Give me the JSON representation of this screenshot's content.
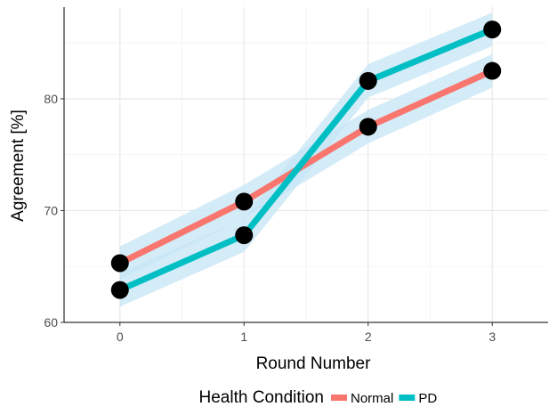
{
  "chart_data": {
    "type": "line",
    "title": "",
    "xlabel": "Round Number",
    "ylabel": "Agreement [%]",
    "x": [
      0,
      1,
      2,
      3
    ],
    "x_tick_labels": [
      "0",
      "1",
      "2",
      "3"
    ],
    "y_tick_labels": [
      "60",
      "70",
      "80"
    ],
    "xlim": [
      -0.45,
      3.45
    ],
    "ylim": [
      60,
      88.2
    ],
    "grid": true,
    "legend": {
      "title": "Health Condition",
      "position": "bottom"
    },
    "series": [
      {
        "name": "Normal",
        "color": "#F8766D",
        "values": [
          65.3,
          70.8,
          77.5,
          82.5
        ],
        "ci_lower": [
          63.8,
          69.3,
          76.0,
          81.0
        ],
        "ci_upper": [
          66.8,
          72.3,
          79.0,
          84.0
        ]
      },
      {
        "name": "PD",
        "color": "#00BFC4",
        "values": [
          62.9,
          67.8,
          81.6,
          86.2
        ],
        "ci_lower": [
          61.4,
          66.3,
          80.1,
          84.7
        ],
        "ci_upper": [
          64.4,
          69.3,
          83.1,
          87.7
        ]
      }
    ],
    "ribbon_color": "#c6e6f5",
    "marker_color": "#000000"
  }
}
